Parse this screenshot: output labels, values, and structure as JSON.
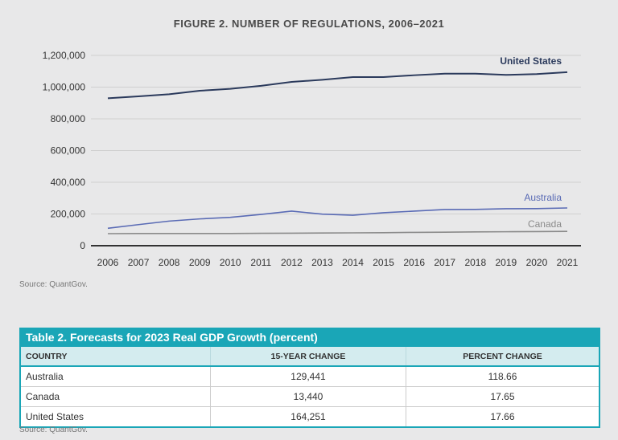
{
  "chart_data": {
    "type": "line",
    "title": "FIGURE 2. NUMBER OF REGULATIONS, 2006–2021",
    "x": [
      2006,
      2007,
      2008,
      2009,
      2010,
      2011,
      2012,
      2013,
      2014,
      2015,
      2016,
      2017,
      2018,
      2019,
      2020,
      2021
    ],
    "ylim": [
      0,
      1200000
    ],
    "yticks": [
      "0",
      "200,000",
      "400,000",
      "600,000",
      "800,000",
      "1,000,000",
      "1,200,000"
    ],
    "grid": true,
    "series": [
      {
        "name": "United States",
        "color": "#2b3a5c",
        "values": [
          930000,
          942000,
          955000,
          977000,
          989000,
          1008000,
          1033000,
          1046000,
          1063000,
          1063000,
          1075000,
          1085000,
          1085000,
          1077000,
          1082000,
          1094000
        ]
      },
      {
        "name": "Australia",
        "color": "#5a6bb5",
        "values": [
          110000,
          133000,
          155000,
          169000,
          179000,
          197000,
          218000,
          199000,
          192000,
          208000,
          218000,
          228000,
          229000,
          233000,
          234000,
          238000
        ]
      },
      {
        "name": "Canada",
        "color": "#8a8a8a",
        "values": [
          76000,
          77000,
          77000,
          77000,
          77000,
          78000,
          79000,
          80000,
          81000,
          82000,
          84000,
          85000,
          87000,
          88000,
          89000,
          90000
        ]
      }
    ],
    "source": "Source: QuantGov."
  },
  "table": {
    "title": "Table 2. Forecasts for 2023 Real GDP Growth (percent)",
    "headers": [
      "COUNTRY",
      "15-YEAR CHANGE",
      "PERCENT CHANGE"
    ],
    "rows": [
      [
        "Australia",
        "129,441",
        "118.66"
      ],
      [
        "Canada",
        "13,440",
        "17.65"
      ],
      [
        "United States",
        "164,251",
        "17.66"
      ]
    ],
    "accent": "#1aa6b7",
    "source": "Source: QuantGov."
  }
}
